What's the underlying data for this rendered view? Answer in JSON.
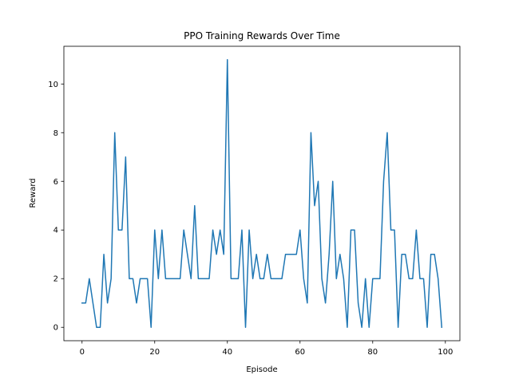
{
  "chart_data": {
    "type": "line",
    "title": "PPO Training Rewards Over Time",
    "xlabel": "Episode",
    "ylabel": "Reward",
    "xlim": [
      -5,
      104
    ],
    "ylim": [
      -0.55,
      11.55
    ],
    "xticks": [
      0,
      20,
      40,
      60,
      80,
      100
    ],
    "yticks": [
      0,
      2,
      4,
      6,
      8,
      10
    ],
    "grid": false,
    "line_color": "#1f77b4",
    "series": [
      {
        "x": [
          0,
          1,
          2,
          3,
          4,
          5,
          6,
          7,
          8,
          9,
          10,
          11,
          12,
          13,
          14,
          15,
          16,
          17,
          18,
          19,
          20,
          21,
          22,
          23,
          24,
          25,
          26,
          27,
          28,
          29,
          30,
          31,
          32,
          33,
          34,
          35,
          36,
          37,
          38,
          39,
          40,
          41,
          42,
          43,
          44,
          45,
          46,
          47,
          48,
          49,
          50,
          51,
          52,
          53,
          54,
          55,
          56,
          57,
          58,
          59,
          60,
          61,
          62,
          63,
          64,
          65,
          66,
          67,
          68,
          69,
          70,
          71,
          72,
          73,
          74,
          75,
          76,
          77,
          78,
          79,
          80,
          81,
          82,
          83,
          84,
          85,
          86,
          87,
          88,
          89,
          90,
          91,
          92,
          93,
          94,
          95,
          96,
          97,
          98,
          99
        ],
        "values": [
          1,
          1,
          2,
          1,
          0,
          0,
          3,
          1,
          2,
          8,
          4,
          4,
          7,
          2,
          2,
          1,
          2,
          2,
          2,
          0,
          4,
          2,
          4,
          2,
          2,
          2,
          2,
          2,
          4,
          3,
          2,
          5,
          2,
          2,
          2,
          2,
          4,
          3,
          4,
          3,
          11,
          2,
          2,
          2,
          4,
          0,
          4,
          2,
          3,
          2,
          2,
          3,
          2,
          2,
          2,
          2,
          3,
          3,
          3,
          3,
          4,
          2,
          1,
          8,
          5,
          6,
          2,
          1,
          3,
          6,
          2,
          3,
          2,
          0,
          4,
          4,
          1,
          0,
          2,
          0,
          2,
          2,
          2,
          6,
          8,
          4,
          4,
          0,
          3,
          3,
          2,
          2,
          4,
          2,
          2,
          0,
          3,
          3,
          2,
          0
        ]
      }
    ]
  }
}
